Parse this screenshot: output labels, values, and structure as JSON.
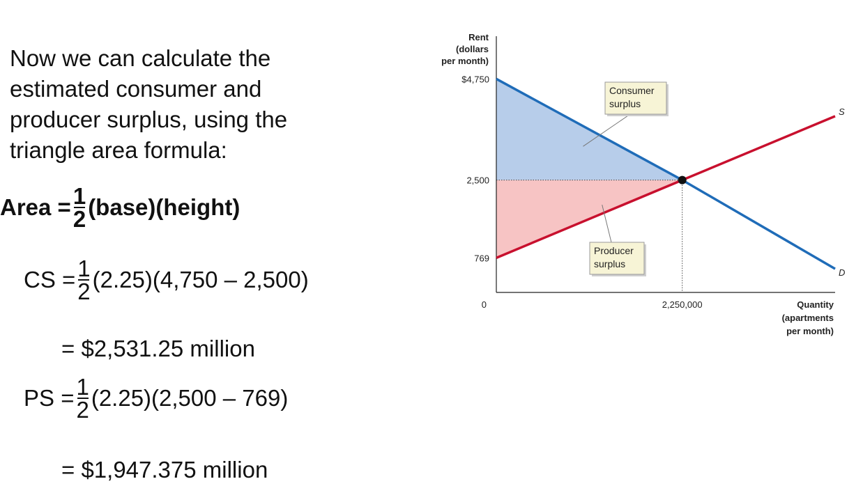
{
  "text": {
    "intro_lines": [
      "Now we can calculate the",
      "estimated consumer and",
      "producer surplus, using the",
      "triangle area formula:"
    ],
    "area": {
      "lhs": "Area =",
      "num": "1",
      "den": "2",
      "rhs": "(base)(height)"
    },
    "cs": {
      "lhs": "CS =",
      "num": "1",
      "den": "2",
      "rhs": "(2.25)(4,750 – 2,500)"
    },
    "cs_result": "= $2,531.25 million",
    "ps": {
      "lhs": "PS =",
      "num": "1",
      "den": "2",
      "rhs": "(2.25)(2,500 – 769)"
    },
    "ps_result": "= $1,947.375 million"
  },
  "chart_data": {
    "type": "line",
    "ylabel": [
      "Rent",
      "(dollars",
      "per month)"
    ],
    "xlabel": [
      "Quantity",
      "(apartments",
      "per month)"
    ],
    "origin_label": "0",
    "y_ticks": [
      {
        "value": 4750,
        "label": "$4,750"
      },
      {
        "value": 2500,
        "label": "2,500"
      },
      {
        "value": 769,
        "label": "769"
      }
    ],
    "x_ticks": [
      {
        "value": 2250000,
        "label": "2,250,000"
      }
    ],
    "series": [
      {
        "name": "D",
        "color": "#1f6cb8",
        "points": [
          [
            0,
            4750
          ],
          [
            2250000,
            2500
          ],
          [
            4100000,
            525
          ]
        ]
      },
      {
        "name": "S",
        "color": "#c8102e",
        "points": [
          [
            0,
            769
          ],
          [
            2250000,
            2500
          ],
          [
            4100000,
            3920
          ]
        ]
      }
    ],
    "equilibrium": {
      "x": 2250000,
      "y": 2500
    },
    "areas": [
      {
        "label": [
          "Consumer",
          "surplus"
        ],
        "color": "#b7cdea",
        "pointer_at": [
          1050000,
          3250
        ]
      },
      {
        "label": [
          "Producer",
          "surplus"
        ],
        "color": "#f7c4c4",
        "pointer_at": [
          1280000,
          1950
        ]
      }
    ],
    "xlim": [
      0,
      4100000
    ],
    "ylim": [
      0,
      5700
    ]
  }
}
